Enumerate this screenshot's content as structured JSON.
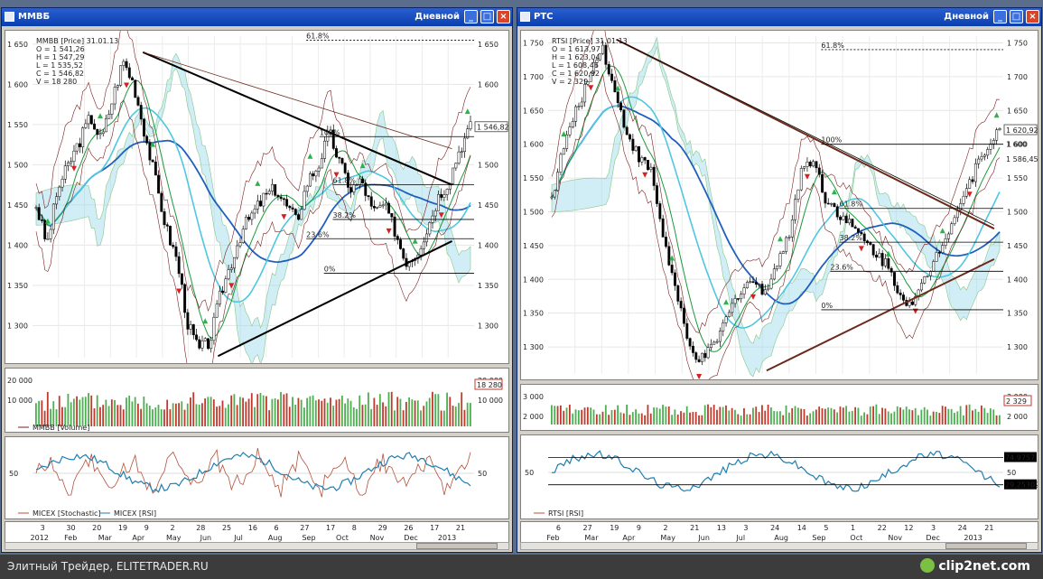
{
  "footer": {
    "left": "Элитный Трейдер, ELITETRADER.RU",
    "right": "clip2net.com"
  },
  "charts": [
    {
      "id": "left",
      "window_title": "ММВБ",
      "timeframe": "Дневной",
      "price_legend": [
        "MMBB [Price] 31.01.13",
        "O = 1 541,26",
        "H = 1 547,29",
        "L = 1 535,52",
        "C = 1 546,82",
        "V = 18 280"
      ],
      "last_price_label": "1 546,82",
      "fib_labels": [
        "61.8%",
        "100%",
        "61.8%",
        "38.2%",
        "23.6%",
        "0%"
      ],
      "volume_label": "MMBB [Volume]",
      "volume_last_label": "18 280",
      "volume_ticks": [
        "20 000",
        "10 000"
      ],
      "osc_labels": [
        "MICEX [Stochastic]",
        "MICEX [RSI]"
      ],
      "osc_tick": "50",
      "price_ticks": [
        "1 650",
        "1 600",
        "1 550",
        "1 500",
        "1 450",
        "1 400",
        "1 350",
        "1 300"
      ],
      "date_top": [
        "3",
        "30",
        "20",
        "19",
        "9",
        "2",
        "28",
        "25",
        "16",
        "6",
        "27",
        "17",
        "8",
        "29",
        "26",
        "17",
        "21"
      ],
      "date_bottom": [
        "2012",
        "Feb",
        "Mar",
        "Apr",
        "May",
        "Jun",
        "Jul",
        "Aug",
        "Sep",
        "Oct",
        "Nov",
        "Dec",
        "2013"
      ]
    },
    {
      "id": "right",
      "window_title": "РТС",
      "timeframe": "Дневной",
      "price_legend": [
        "RTSI [Price] 31.01.13",
        "O = 1 613,97",
        "H = 1 623,04",
        "L = 1 608,46",
        "C = 1 620,92",
        "V = 2 329"
      ],
      "last_price_label": "1 620,92",
      "second_price_label": "1 600",
      "third_price_label": "1 586,45",
      "fib_labels": [
        "61.8%",
        "100%",
        "61.8%",
        "38.2%",
        "23.6%",
        "0%"
      ],
      "volume_last_label": "2 329",
      "volume_ticks": [
        "3 000",
        "2 000"
      ],
      "osc_labels": [
        "RTSI [RSI]"
      ],
      "osc_tick": "50",
      "rsi_right_labels": [
        "74,9757",
        "29,25302"
      ],
      "price_ticks": [
        "1 750",
        "1 700",
        "1 650",
        "1 600",
        "1 550",
        "1 500",
        "1 450",
        "1 400",
        "1 350",
        "1 300"
      ],
      "date_top": [
        "6",
        "27",
        "19",
        "9",
        "2",
        "21",
        "13",
        "3",
        "24",
        "14",
        "5",
        "1",
        "22",
        "12",
        "3",
        "24",
        "21"
      ],
      "date_bottom": [
        "Feb",
        "Mar",
        "Apr",
        "May",
        "Jun",
        "Jul",
        "Aug",
        "Sep",
        "Oct",
        "Nov",
        "Dec",
        "2013"
      ]
    }
  ],
  "chart_data": [
    {
      "type": "line",
      "title": "ММВБ",
      "ylim": [
        1260,
        1660
      ],
      "series": [
        {
          "name": "MMBB [Price]",
          "values": [
            1450,
            1400,
            1470,
            1500,
            1530,
            1560,
            1530,
            1580,
            1630,
            1600,
            1540,
            1480,
            1420,
            1380,
            1300,
            1270,
            1280,
            1340,
            1380,
            1420,
            1440,
            1460,
            1470,
            1450,
            1430,
            1480,
            1500,
            1540,
            1500,
            1470,
            1480,
            1440,
            1450,
            1420,
            1380,
            1390,
            1420,
            1460,
            1480,
            1520,
            1546.82
          ]
        }
      ],
      "xlabel": "",
      "ylabel": ""
    },
    {
      "type": "line",
      "title": "РТС",
      "ylim": [
        1260,
        1760
      ],
      "series": [
        {
          "name": "RTSI [Price]",
          "values": [
            1520,
            1600,
            1650,
            1700,
            1750,
            1680,
            1620,
            1580,
            1560,
            1460,
            1380,
            1300,
            1280,
            1300,
            1340,
            1380,
            1400,
            1380,
            1420,
            1460,
            1560,
            1580,
            1520,
            1500,
            1480,
            1460,
            1440,
            1420,
            1380,
            1360,
            1400,
            1440,
            1480,
            1520,
            1560,
            1600,
            1620.92
          ]
        }
      ],
      "xlabel": "",
      "ylabel": ""
    },
    {
      "type": "bar",
      "title": "MMBB [Volume]",
      "ylim": [
        0,
        25000
      ]
    },
    {
      "type": "line",
      "title": "RTSI [RSI]",
      "ylim": [
        0,
        100
      ],
      "levels": [
        74.9757,
        29.25302
      ]
    }
  ]
}
